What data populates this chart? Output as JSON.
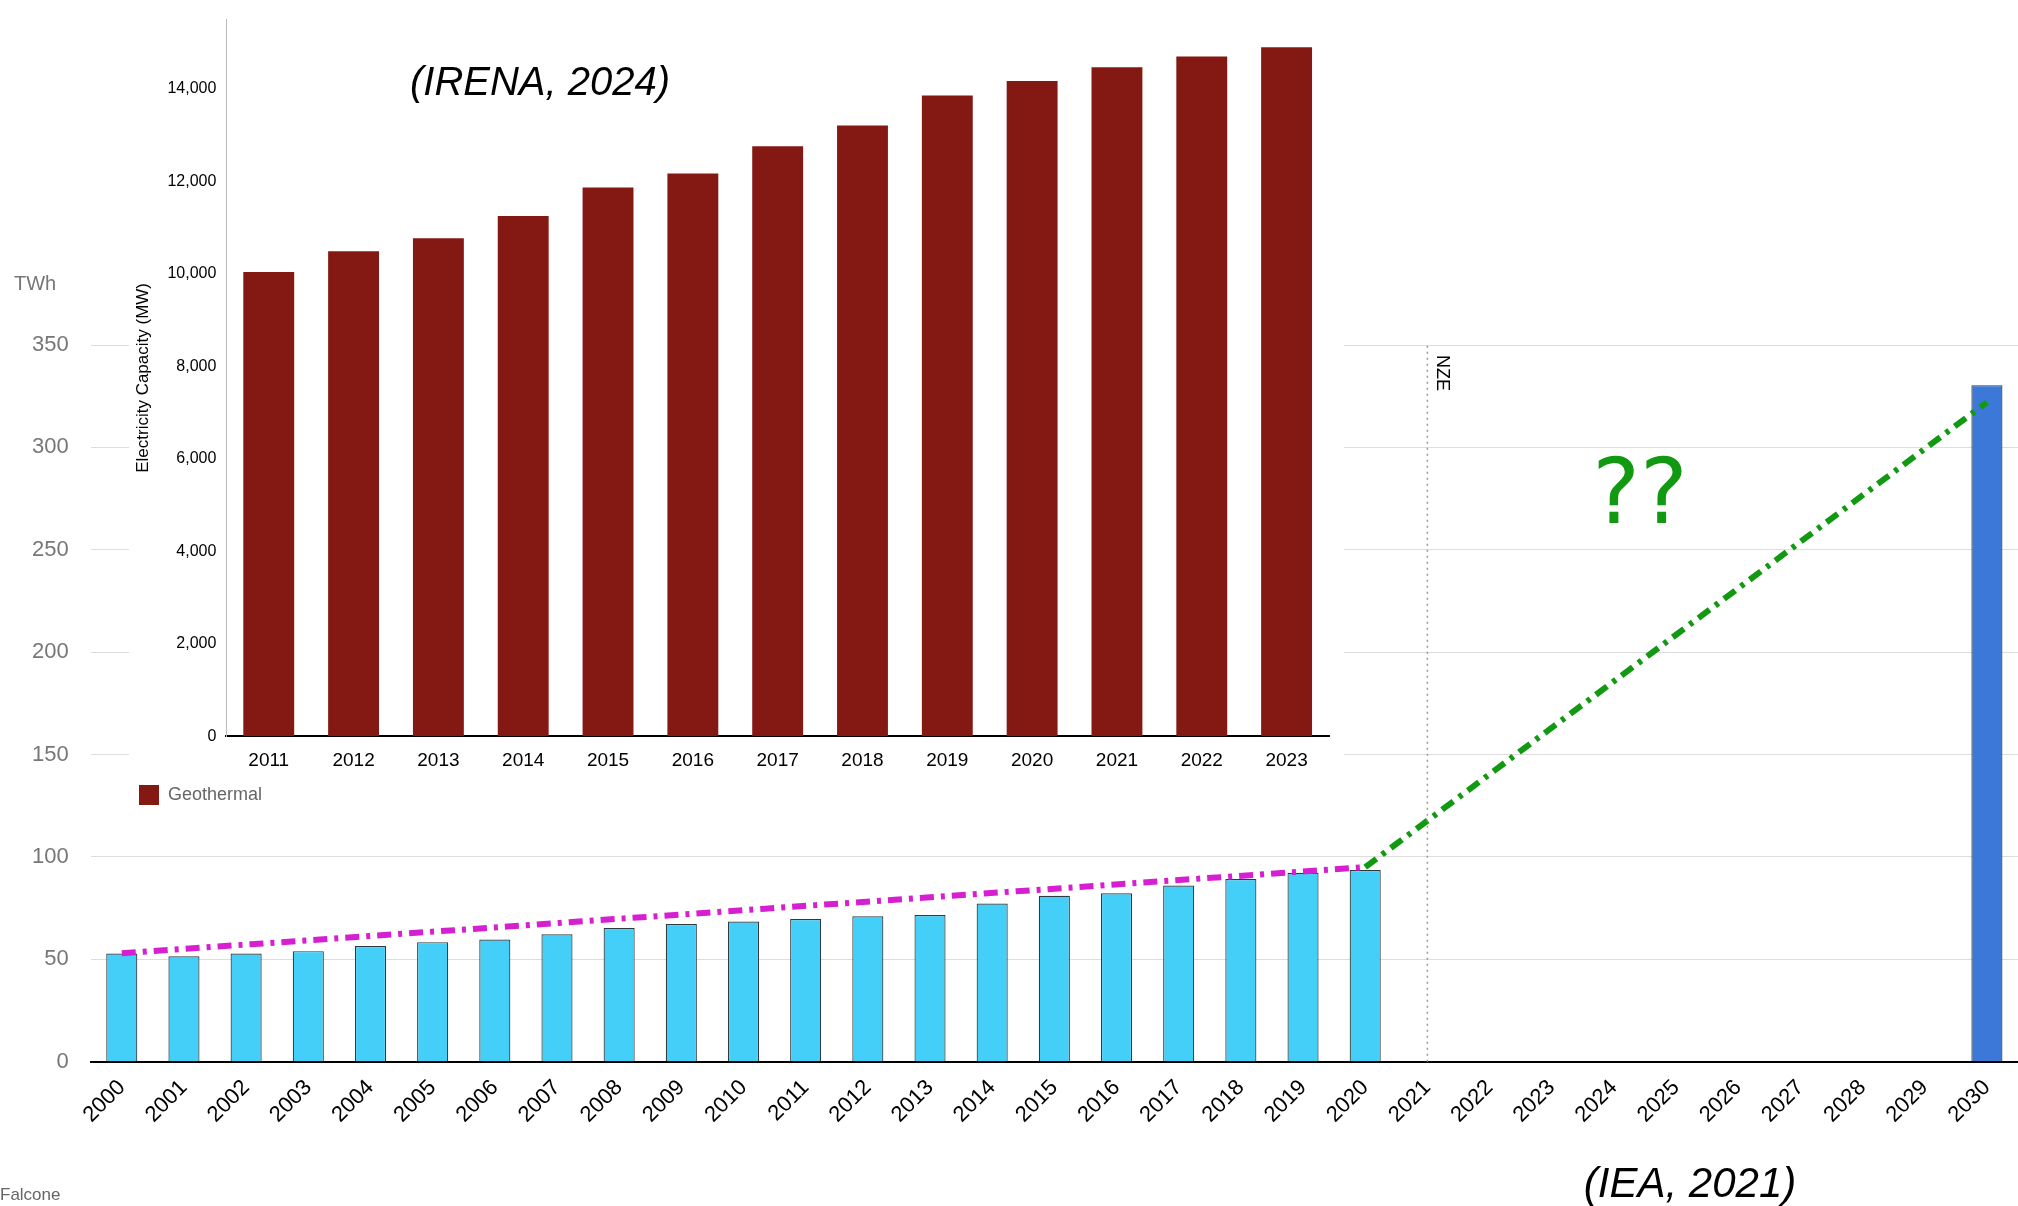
{
  "chart_data": [
    {
      "type": "bar",
      "ylabel": "TWh",
      "categories": [
        "2000",
        "2001",
        "2002",
        "2003",
        "2004",
        "2005",
        "2006",
        "2007",
        "2008",
        "2009",
        "2010",
        "2011",
        "2012",
        "2013",
        "2014",
        "2015",
        "2016",
        "2017",
        "2018",
        "2019",
        "2020",
        "2021",
        "2022",
        "2023",
        "2024",
        "2025",
        "2026",
        "2027",
        "2028",
        "2029",
        "2030"
      ],
      "series": [
        {
          "type": "bar",
          "values": [
            52.8,
            51.5,
            52.8,
            54,
            56.5,
            58.4,
            59.7,
            62.2,
            65.3,
            67.2,
            68.5,
            69.7,
            71,
            71.6,
            77.3,
            81,
            82.3,
            86,
            89.2,
            92.3,
            93.6,
            null,
            null,
            null,
            null,
            null,
            null,
            null,
            null,
            null,
            330.4
          ],
          "colors": [
            "#44cff8",
            "#44cff8",
            "#44cff8",
            "#44cff8",
            "#44cff8",
            "#44cff8",
            "#44cff8",
            "#44cff8",
            "#44cff8",
            "#44cff8",
            "#44cff8",
            "#44cff8",
            "#44cff8",
            "#44cff8",
            "#44cff8",
            "#44cff8",
            "#44cff8",
            "#44cff8",
            "#44cff8",
            "#44cff8",
            "#44cff8",
            null,
            null,
            null,
            null,
            null,
            null,
            null,
            null,
            null,
            "#3c78d8"
          ]
        },
        {
          "type": "line",
          "color": "#d61fd0",
          "line_style": "dashed",
          "values": [
            53,
            null,
            null,
            null,
            null,
            null,
            null,
            null,
            null,
            null,
            null,
            null,
            null,
            null,
            null,
            null,
            null,
            null,
            null,
            null,
            95,
            null,
            null,
            null,
            null,
            null,
            null,
            null,
            null,
            null,
            null
          ]
        },
        {
          "type": "line",
          "color": "#119a11",
          "line_style": "dashed",
          "values": [
            null,
            null,
            null,
            null,
            null,
            null,
            null,
            null,
            null,
            null,
            null,
            null,
            null,
            null,
            null,
            null,
            null,
            null,
            null,
            null,
            95,
            null,
            null,
            null,
            null,
            null,
            null,
            null,
            null,
            null,
            322
          ]
        }
      ],
      "ylim": [
        0,
        350
      ],
      "yticks": [
        0,
        50,
        100,
        150,
        200,
        250,
        300,
        350
      ],
      "grid": "y",
      "ref_lines": [
        {
          "axis": "x",
          "value": "2021",
          "label": "NZE",
          "line_style": "dotted",
          "color": "#999999"
        }
      ],
      "annotations": [
        "(IEA, 2021)",
        "??",
        "Falcone"
      ]
    },
    {
      "type": "bar",
      "ylabel": "Electricity Capacity (MW)",
      "categories": [
        "2011",
        "2012",
        "2013",
        "2014",
        "2015",
        "2016",
        "2017",
        "2018",
        "2019",
        "2020",
        "2021",
        "2022",
        "2023"
      ],
      "series": [
        {
          "name": "Geothermal",
          "color": "#841812",
          "values": [
            10040,
            10490,
            10770,
            11250,
            11870,
            12170,
            12760,
            13210,
            13860,
            14170,
            14470,
            14700,
            14900
          ]
        }
      ],
      "ylim": [
        0,
        15500
      ],
      "yticks": [
        {
          "value": 0,
          "label": "0"
        },
        {
          "value": 2000,
          "label": "2,000"
        },
        {
          "value": 4000,
          "label": "4,000"
        },
        {
          "value": 6000,
          "label": "6,000"
        },
        {
          "value": 8000,
          "label": "8,000"
        },
        {
          "value": 10000,
          "label": "10,000"
        },
        {
          "value": 12000,
          "label": "12,000"
        },
        {
          "value": 14000,
          "label": "14,000"
        }
      ],
      "legend": "bottom",
      "annotations": [
        "(IRENA, 2024)"
      ]
    }
  ]
}
